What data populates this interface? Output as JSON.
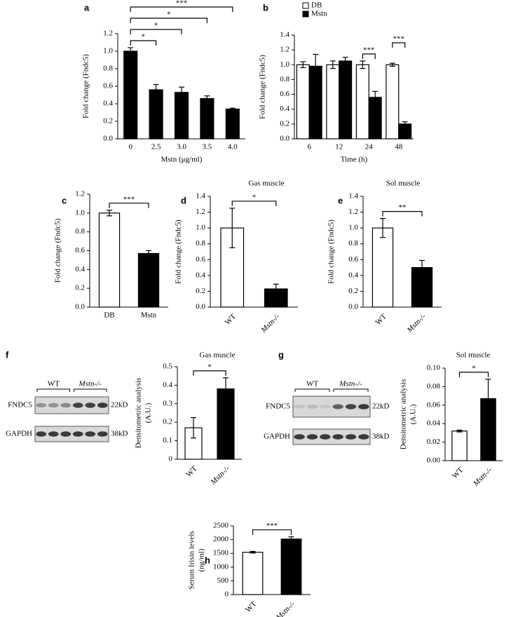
{
  "chart_data": [
    {
      "type": "bar",
      "panel": "a",
      "xlabel": "Mstn (μg/ml)",
      "ylabel": [
        "Fold change (Fndc5)"
      ],
      "categories": [
        "0",
        "2.5",
        "3.0",
        "3.5",
        "4.0"
      ],
      "values": [
        1.0,
        0.56,
        0.53,
        0.46,
        0.34
      ],
      "errors": [
        0.04,
        0.06,
        0.06,
        0.03,
        0.01
      ],
      "color": "#000000",
      "ylim": [
        0,
        1.2
      ],
      "yticks": [
        {
          "value": 0,
          "label": "0.0"
        },
        0.2,
        0.4,
        0.6,
        0.8,
        {
          "value": 1,
          "label": "1.0"
        },
        1.2
      ],
      "significance": [
        {
          "label": "*",
          "from": "0",
          "to": "2.5"
        },
        {
          "label": "*",
          "from": "0",
          "to": "3.0"
        },
        {
          "label": "*",
          "from": "0",
          "to": "3.5"
        },
        {
          "label": "***",
          "from": "0",
          "to": "4.0"
        }
      ]
    },
    {
      "type": "grouped-bar",
      "panel": "b",
      "xlabel": "Time (h)",
      "ylabel": [
        "Fold change (Fndc5)"
      ],
      "legend": "top-right",
      "categories": [
        "6",
        "12",
        "24",
        "48"
      ],
      "series": [
        {
          "name": "DB",
          "color": "#ffffff",
          "values": [
            1.0,
            1.0,
            1.0,
            1.0
          ],
          "errors": [
            0.04,
            0.05,
            0.05,
            0.02
          ]
        },
        {
          "name": "Mstn",
          "color": "#000000",
          "values": [
            0.98,
            1.05,
            0.56,
            0.2
          ],
          "errors": [
            0.16,
            0.05,
            0.08,
            0.03
          ]
        }
      ],
      "ylim": [
        0,
        1.4
      ],
      "yticks": [
        {
          "value": 0,
          "label": "0.0"
        },
        0.2,
        0.4,
        0.6,
        0.8,
        {
          "value": 1,
          "label": "1.0"
        },
        1.2,
        1.4
      ],
      "significance": [
        {
          "label": "***",
          "category": "24"
        },
        {
          "label": "***",
          "category": "48"
        }
      ]
    },
    {
      "type": "bar",
      "panel": "c",
      "ylabel": [
        "Fold change (Fndc5)"
      ],
      "categories": [
        "DB",
        "Mstn"
      ],
      "values": [
        1.0,
        0.57
      ],
      "errors": [
        0.03,
        0.03
      ],
      "colors": [
        "#ffffff",
        "#000000"
      ],
      "ylim": [
        0,
        1.2
      ],
      "yticks": [
        {
          "value": 0,
          "label": "0.0"
        },
        0.2,
        0.4,
        0.6,
        0.8,
        {
          "value": 1,
          "label": "1.0"
        },
        1.2
      ],
      "significance": [
        {
          "label": "***",
          "from": "DB",
          "to": "Mstn"
        }
      ]
    },
    {
      "type": "bar",
      "panel": "d",
      "title": "Gas muscle",
      "ylabel": [
        "Fold change (Fndc5)"
      ],
      "categories": [
        "WT",
        "Mstn-/-"
      ],
      "values": [
        1.0,
        0.23
      ],
      "errors": [
        0.25,
        0.06
      ],
      "colors": [
        "#ffffff",
        "#000000"
      ],
      "ylim": [
        0,
        1.4
      ],
      "yticks": [
        {
          "value": 0,
          "label": "0.0"
        },
        0.2,
        0.4,
        0.6,
        0.8,
        {
          "value": 1,
          "label": "1.0"
        },
        1.2,
        1.4
      ],
      "significance": [
        {
          "label": "*",
          "from": "WT",
          "to": "Mstn-/-"
        }
      ]
    },
    {
      "type": "bar",
      "panel": "e",
      "title": "Sol muscle",
      "ylabel": [
        "Fold change (Fndc5)"
      ],
      "categories": [
        "WT",
        "Mstn-/-"
      ],
      "values": [
        1.0,
        0.5
      ],
      "errors": [
        0.12,
        0.09
      ],
      "colors": [
        "#ffffff",
        "#000000"
      ],
      "ylim": [
        0,
        1.4
      ],
      "yticks": [
        {
          "value": 0,
          "label": "0.0"
        },
        0.2,
        0.4,
        0.6,
        0.8,
        {
          "value": 1,
          "label": "1.0"
        },
        1.2,
        1.4
      ],
      "significance": [
        {
          "label": "**",
          "from": "WT",
          "to": "Mstn-/-"
        }
      ]
    },
    {
      "type": "bar",
      "panel": "f",
      "title": "Gas muscle",
      "ylabel": [
        "Densitometric analysis",
        "(A.U.)"
      ],
      "categories": [
        "WT",
        "Mstn-/-"
      ],
      "values": [
        0.17,
        0.38
      ],
      "errors": [
        0.055,
        0.06
      ],
      "colors": [
        "#ffffff",
        "#000000"
      ],
      "ylim": [
        0,
        0.5
      ],
      "yticks": [
        0,
        0.1,
        0.2,
        0.3,
        0.4,
        0.5
      ],
      "significance": [
        {
          "label": "*",
          "from": "WT",
          "to": "Mstn-/-"
        }
      ]
    },
    {
      "type": "bar",
      "panel": "g",
      "title": "Sol muscle",
      "ylabel": [
        "Densitometric analysis",
        "(A.U.)"
      ],
      "categories": [
        "WT",
        "Mstn-/-"
      ],
      "values": [
        0.032,
        0.067
      ],
      "errors": [
        0.001,
        0.021
      ],
      "colors": [
        "#ffffff",
        "#000000"
      ],
      "ylim": [
        0,
        0.1
      ],
      "yticks": [
        {
          "value": 0,
          "label": "0.00"
        },
        0.02,
        0.04,
        0.06,
        0.08,
        {
          "value": 0.1,
          "label": "0.10"
        }
      ],
      "significance": [
        {
          "label": "*",
          "from": "WT",
          "to": "Mstn-/-"
        }
      ]
    },
    {
      "type": "bar",
      "panel": "h",
      "ylabel": [
        "Serum Irisin levels",
        "(ng/ml)"
      ],
      "categories": [
        "WT",
        "Mstn-/-"
      ],
      "values": [
        1540,
        2020
      ],
      "errors": [
        30,
        80
      ],
      "colors": [
        "#ffffff",
        "#000000"
      ],
      "ylim": [
        0,
        2500
      ],
      "yticks": [
        0,
        500,
        1000,
        1500,
        2000,
        2500
      ],
      "significance": [
        {
          "label": "***",
          "from": "WT",
          "to": "Mstn-/-"
        }
      ]
    }
  ],
  "blots": [
    {
      "groups": [
        "WT",
        "Mstn-/-"
      ],
      "bands": [
        {
          "name": "FNDC5",
          "size": "22kD"
        },
        {
          "name": "GAPDH",
          "size": "38kD"
        }
      ]
    },
    {
      "groups": [
        "WT",
        "Mstn-/-"
      ],
      "bands": [
        {
          "name": "FNDC5",
          "size": "22kD"
        },
        {
          "name": "GAPDH",
          "size": "38kD"
        }
      ]
    }
  ]
}
